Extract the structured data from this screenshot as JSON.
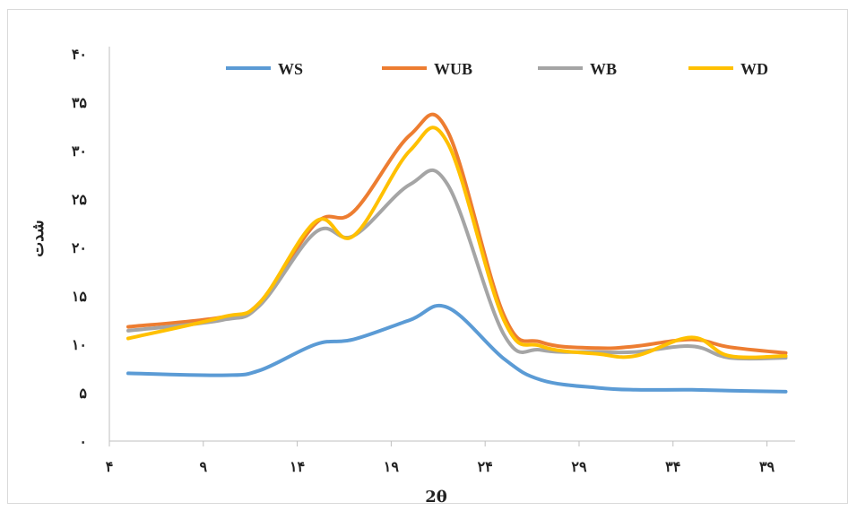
{
  "chart_data": {
    "type": "line",
    "title": "",
    "xlabel": "2θ",
    "ylabel": "شدت",
    "xlim": [
      4,
      40.5
    ],
    "ylim": [
      0,
      40
    ],
    "x_ticks": [
      4,
      9,
      14,
      19,
      24,
      29,
      34,
      39
    ],
    "x_tick_labels": [
      "۴",
      "۹",
      "۱۴",
      "۱۹",
      "۲۴",
      "۲۹",
      "۳۴",
      "۳۹"
    ],
    "y_ticks": [
      0,
      5,
      10,
      15,
      20,
      25,
      30,
      35,
      40
    ],
    "y_tick_labels": [
      "۰",
      "۵",
      "۱۰",
      "۱۵",
      "۲۰",
      "۲۵",
      "۳۰",
      "۳۵",
      "۴۰"
    ],
    "grid": false,
    "legend_position": "top",
    "x": [
      5,
      10,
      12,
      15,
      17,
      20,
      22,
      25,
      27,
      30,
      32,
      35,
      37,
      40
    ],
    "series": [
      {
        "name": "WS",
        "color": "#5B9BD5",
        "values": [
          7,
          6.8,
          7.3,
          10,
          10.5,
          12.5,
          13.8,
          8.5,
          6.3,
          5.5,
          5.3,
          5.3,
          5.2,
          5.1
        ]
      },
      {
        "name": "WUB",
        "color": "#ED7D31",
        "values": [
          11.8,
          12.8,
          14.3,
          22.5,
          23.7,
          31.6,
          32.0,
          13.0,
          10.2,
          9.6,
          9.8,
          10.5,
          9.7,
          9.1
        ]
      },
      {
        "name": "WB",
        "color": "#A5A5A5",
        "values": [
          11.4,
          12.5,
          14.0,
          21.6,
          21.2,
          26.5,
          26.5,
          11.0,
          9.4,
          9.2,
          9.2,
          9.8,
          8.6,
          8.6
        ]
      },
      {
        "name": "WD",
        "color": "#FFC000",
        "values": [
          10.6,
          12.8,
          14.3,
          22.7,
          21.2,
          30.0,
          30.8,
          12.5,
          9.8,
          9.0,
          8.8,
          10.7,
          8.8,
          8.8
        ]
      }
    ]
  }
}
